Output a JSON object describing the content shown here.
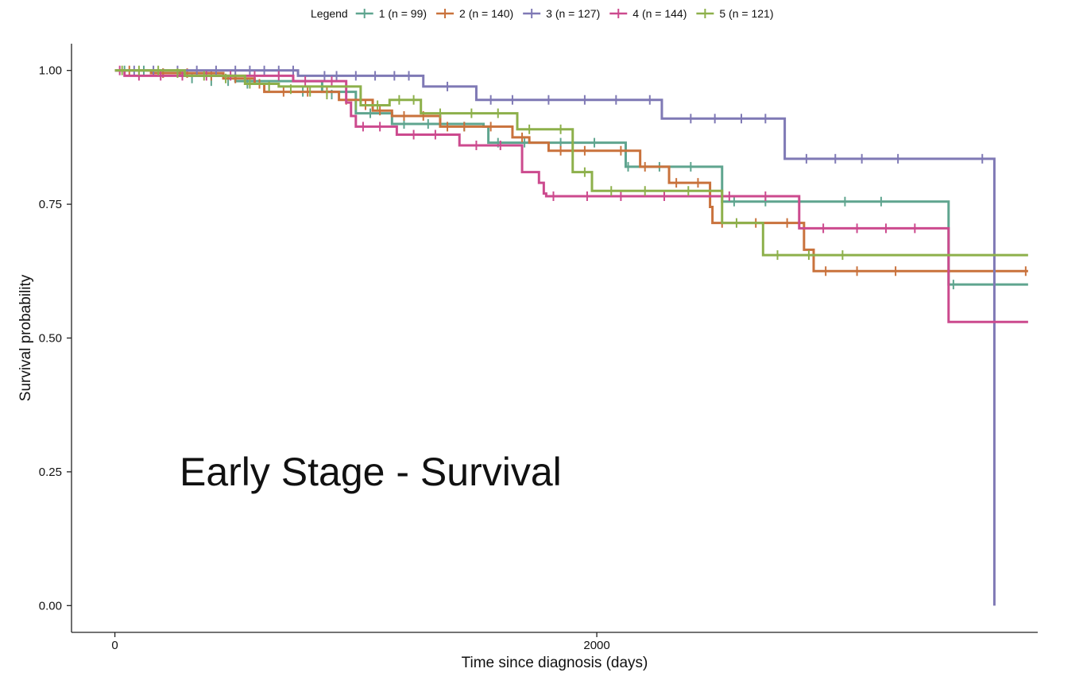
{
  "chart_data": {
    "type": "line",
    "title": "",
    "overlay_text": "Early Stage - Survival",
    "xlabel": "Time since diagnosis (days)",
    "ylabel": "Survival probability",
    "xlim": [
      -180,
      3830
    ],
    "ylim": [
      -0.05,
      1.05
    ],
    "x_ticks": [
      0,
      2000
    ],
    "x_tick_labels": [
      "0",
      "2000"
    ],
    "y_ticks": [
      0,
      0.25,
      0.5,
      0.75,
      1.0
    ],
    "y_tick_labels": [
      "0.00",
      "0.25",
      "0.50",
      "0.75",
      "1.00"
    ],
    "grid": false,
    "legend": {
      "title": "Legend",
      "position": "top"
    },
    "series": [
      {
        "name": "1 (n = 99)",
        "color": "#5fa58f",
        "steps": [
          [
            0,
            1.0
          ],
          [
            270,
            0.99
          ],
          [
            500,
            0.98
          ],
          [
            860,
            0.96
          ],
          [
            1000,
            0.92
          ],
          [
            1150,
            0.9
          ],
          [
            1530,
            0.895
          ],
          [
            1550,
            0.865
          ],
          [
            2120,
            0.82
          ],
          [
            2520,
            0.755
          ],
          [
            3460,
            0.6
          ],
          [
            3790,
            0.6
          ]
        ],
        "censor": [
          [
            40,
            1.0
          ],
          [
            120,
            1.0
          ],
          [
            200,
            0.995
          ],
          [
            320,
            0.985
          ],
          [
            400,
            0.98
          ],
          [
            470,
            0.98
          ],
          [
            550,
            0.975
          ],
          [
            640,
            0.97
          ],
          [
            780,
            0.96
          ],
          [
            900,
            0.955
          ],
          [
            980,
            0.93
          ],
          [
            1060,
            0.92
          ],
          [
            1200,
            0.9
          ],
          [
            1300,
            0.9
          ],
          [
            1450,
            0.895
          ],
          [
            1590,
            0.865
          ],
          [
            1700,
            0.865
          ],
          [
            1850,
            0.865
          ],
          [
            1990,
            0.865
          ],
          [
            2130,
            0.82
          ],
          [
            2260,
            0.82
          ],
          [
            2390,
            0.82
          ],
          [
            2570,
            0.755
          ],
          [
            2700,
            0.755
          ],
          [
            2840,
            0.755
          ],
          [
            3030,
            0.755
          ],
          [
            3180,
            0.755
          ],
          [
            3480,
            0.6
          ]
        ]
      },
      {
        "name": "2 (n = 140)",
        "color": "#c9723c",
        "steps": [
          [
            0,
            1.0
          ],
          [
            150,
            0.995
          ],
          [
            450,
            0.985
          ],
          [
            580,
            0.975
          ],
          [
            620,
            0.96
          ],
          [
            930,
            0.945
          ],
          [
            1070,
            0.925
          ],
          [
            1150,
            0.915
          ],
          [
            1350,
            0.895
          ],
          [
            1650,
            0.875
          ],
          [
            1720,
            0.865
          ],
          [
            1800,
            0.85
          ],
          [
            2030,
            0.85
          ],
          [
            2180,
            0.82
          ],
          [
            2300,
            0.79
          ],
          [
            2470,
            0.745
          ],
          [
            2480,
            0.715
          ],
          [
            2840,
            0.715
          ],
          [
            2860,
            0.665
          ],
          [
            2900,
            0.625
          ],
          [
            3790,
            0.625
          ]
        ],
        "censor": [
          [
            60,
            1.0
          ],
          [
            200,
            0.995
          ],
          [
            300,
            0.995
          ],
          [
            400,
            0.99
          ],
          [
            500,
            0.985
          ],
          [
            600,
            0.975
          ],
          [
            700,
            0.96
          ],
          [
            800,
            0.96
          ],
          [
            880,
            0.96
          ],
          [
            960,
            0.945
          ],
          [
            1040,
            0.935
          ],
          [
            1100,
            0.925
          ],
          [
            1200,
            0.915
          ],
          [
            1280,
            0.915
          ],
          [
            1380,
            0.895
          ],
          [
            1450,
            0.895
          ],
          [
            1560,
            0.895
          ],
          [
            1690,
            0.875
          ],
          [
            1850,
            0.85
          ],
          [
            1950,
            0.85
          ],
          [
            2100,
            0.85
          ],
          [
            2200,
            0.82
          ],
          [
            2330,
            0.79
          ],
          [
            2420,
            0.79
          ],
          [
            2520,
            0.715
          ],
          [
            2660,
            0.715
          ],
          [
            2790,
            0.715
          ],
          [
            2950,
            0.625
          ],
          [
            3080,
            0.625
          ],
          [
            3240,
            0.625
          ],
          [
            3780,
            0.625
          ]
        ]
      },
      {
        "name": "3 (n = 127)",
        "color": "#7f79b5",
        "steps": [
          [
            0,
            1.0
          ],
          [
            760,
            0.99
          ],
          [
            1280,
            0.97
          ],
          [
            1500,
            0.945
          ],
          [
            2270,
            0.91
          ],
          [
            2780,
            0.835
          ],
          [
            3650,
            0.835
          ],
          [
            3650,
            0.0
          ]
        ],
        "censor": [
          [
            80,
            1.0
          ],
          [
            160,
            1.0
          ],
          [
            260,
            1.0
          ],
          [
            340,
            1.0
          ],
          [
            420,
            1.0
          ],
          [
            500,
            1.0
          ],
          [
            560,
            1.0
          ],
          [
            620,
            1.0
          ],
          [
            680,
            1.0
          ],
          [
            740,
            1.0
          ],
          [
            870,
            0.99
          ],
          [
            920,
            0.99
          ],
          [
            1000,
            0.99
          ],
          [
            1080,
            0.99
          ],
          [
            1160,
            0.99
          ],
          [
            1220,
            0.99
          ],
          [
            1380,
            0.97
          ],
          [
            1560,
            0.945
          ],
          [
            1650,
            0.945
          ],
          [
            1800,
            0.945
          ],
          [
            1950,
            0.945
          ],
          [
            2080,
            0.945
          ],
          [
            2220,
            0.945
          ],
          [
            2390,
            0.91
          ],
          [
            2490,
            0.91
          ],
          [
            2600,
            0.91
          ],
          [
            2700,
            0.91
          ],
          [
            2870,
            0.835
          ],
          [
            2990,
            0.835
          ],
          [
            3100,
            0.835
          ],
          [
            3250,
            0.835
          ],
          [
            3600,
            0.835
          ]
        ]
      },
      {
        "name": "4 (n = 144)",
        "color": "#cc4a8e",
        "steps": [
          [
            0,
            1.0
          ],
          [
            40,
            0.99
          ],
          [
            740,
            0.98
          ],
          [
            960,
            0.94
          ],
          [
            980,
            0.915
          ],
          [
            1000,
            0.895
          ],
          [
            1170,
            0.88
          ],
          [
            1430,
            0.86
          ],
          [
            1690,
            0.81
          ],
          [
            1760,
            0.79
          ],
          [
            1780,
            0.77
          ],
          [
            1790,
            0.765
          ],
          [
            2840,
            0.765
          ],
          [
            2840,
            0.705
          ],
          [
            3460,
            0.705
          ],
          [
            3460,
            0.53
          ],
          [
            3790,
            0.53
          ]
        ],
        "censor": [
          [
            20,
            1.0
          ],
          [
            100,
            0.99
          ],
          [
            190,
            0.99
          ],
          [
            280,
            0.99
          ],
          [
            380,
            0.99
          ],
          [
            480,
            0.99
          ],
          [
            580,
            0.99
          ],
          [
            680,
            0.99
          ],
          [
            790,
            0.98
          ],
          [
            900,
            0.98
          ],
          [
            1030,
            0.895
          ],
          [
            1100,
            0.895
          ],
          [
            1240,
            0.88
          ],
          [
            1330,
            0.88
          ],
          [
            1500,
            0.86
          ],
          [
            1600,
            0.86
          ],
          [
            1820,
            0.765
          ],
          [
            1960,
            0.765
          ],
          [
            2100,
            0.765
          ],
          [
            2280,
            0.765
          ],
          [
            2550,
            0.765
          ],
          [
            2700,
            0.765
          ],
          [
            2940,
            0.705
          ],
          [
            3080,
            0.705
          ],
          [
            3200,
            0.705
          ],
          [
            3320,
            0.705
          ]
        ]
      },
      {
        "name": "5 (n = 121)",
        "color": "#8db04b",
        "steps": [
          [
            0,
            1.0
          ],
          [
            290,
            0.99
          ],
          [
            540,
            0.975
          ],
          [
            680,
            0.97
          ],
          [
            1020,
            0.935
          ],
          [
            1140,
            0.945
          ],
          [
            1270,
            0.92
          ],
          [
            1670,
            0.89
          ],
          [
            1900,
            0.81
          ],
          [
            1980,
            0.775
          ],
          [
            2520,
            0.715
          ],
          [
            2690,
            0.655
          ],
          [
            3790,
            0.655
          ]
        ],
        "censor": [
          [
            30,
            1.0
          ],
          [
            100,
            1.0
          ],
          [
            180,
            1.0
          ],
          [
            260,
            0.995
          ],
          [
            370,
            0.99
          ],
          [
            460,
            0.985
          ],
          [
            560,
            0.975
          ],
          [
            640,
            0.97
          ],
          [
            730,
            0.965
          ],
          [
            810,
            0.96
          ],
          [
            880,
            0.955
          ],
          [
            1000,
            0.935
          ],
          [
            1090,
            0.935
          ],
          [
            1180,
            0.945
          ],
          [
            1240,
            0.945
          ],
          [
            1350,
            0.92
          ],
          [
            1480,
            0.92
          ],
          [
            1590,
            0.92
          ],
          [
            1720,
            0.89
          ],
          [
            1850,
            0.89
          ],
          [
            1950,
            0.81
          ],
          [
            2060,
            0.775
          ],
          [
            2200,
            0.775
          ],
          [
            2380,
            0.775
          ],
          [
            2580,
            0.715
          ],
          [
            2750,
            0.655
          ],
          [
            2880,
            0.655
          ],
          [
            3020,
            0.655
          ]
        ]
      }
    ]
  }
}
